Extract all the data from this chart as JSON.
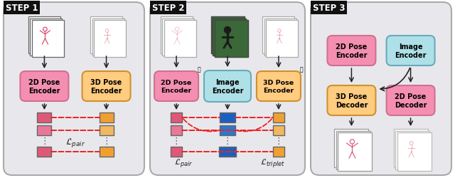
{
  "fig_width": 6.4,
  "fig_height": 2.51,
  "color_pink_encoder": "#F48FB1",
  "color_orange_encoder": "#FFCC80",
  "color_cyan_encoder": "#AEE0E8",
  "color_pink_embed_dark": "#E05878",
  "color_pink_embed_mid": "#E8789A",
  "color_orange_embed_dark": "#F0A030",
  "color_orange_embed_mid": "#F0B860",
  "color_blue_embed_dark": "#1A60C0",
  "color_blue_embed_mid": "#2878D0",
  "panel_bg": "#E8E8EC",
  "panel_edge": "#AAAAAA",
  "arrow_color": "#222222",
  "dashed_color": "#EE2222",
  "step_label_bg": "#111111",
  "step_label_fg": "#ffffff",
  "step1_title": "STEP 1",
  "step2_title": "STEP 2",
  "step3_title": "STEP 3"
}
